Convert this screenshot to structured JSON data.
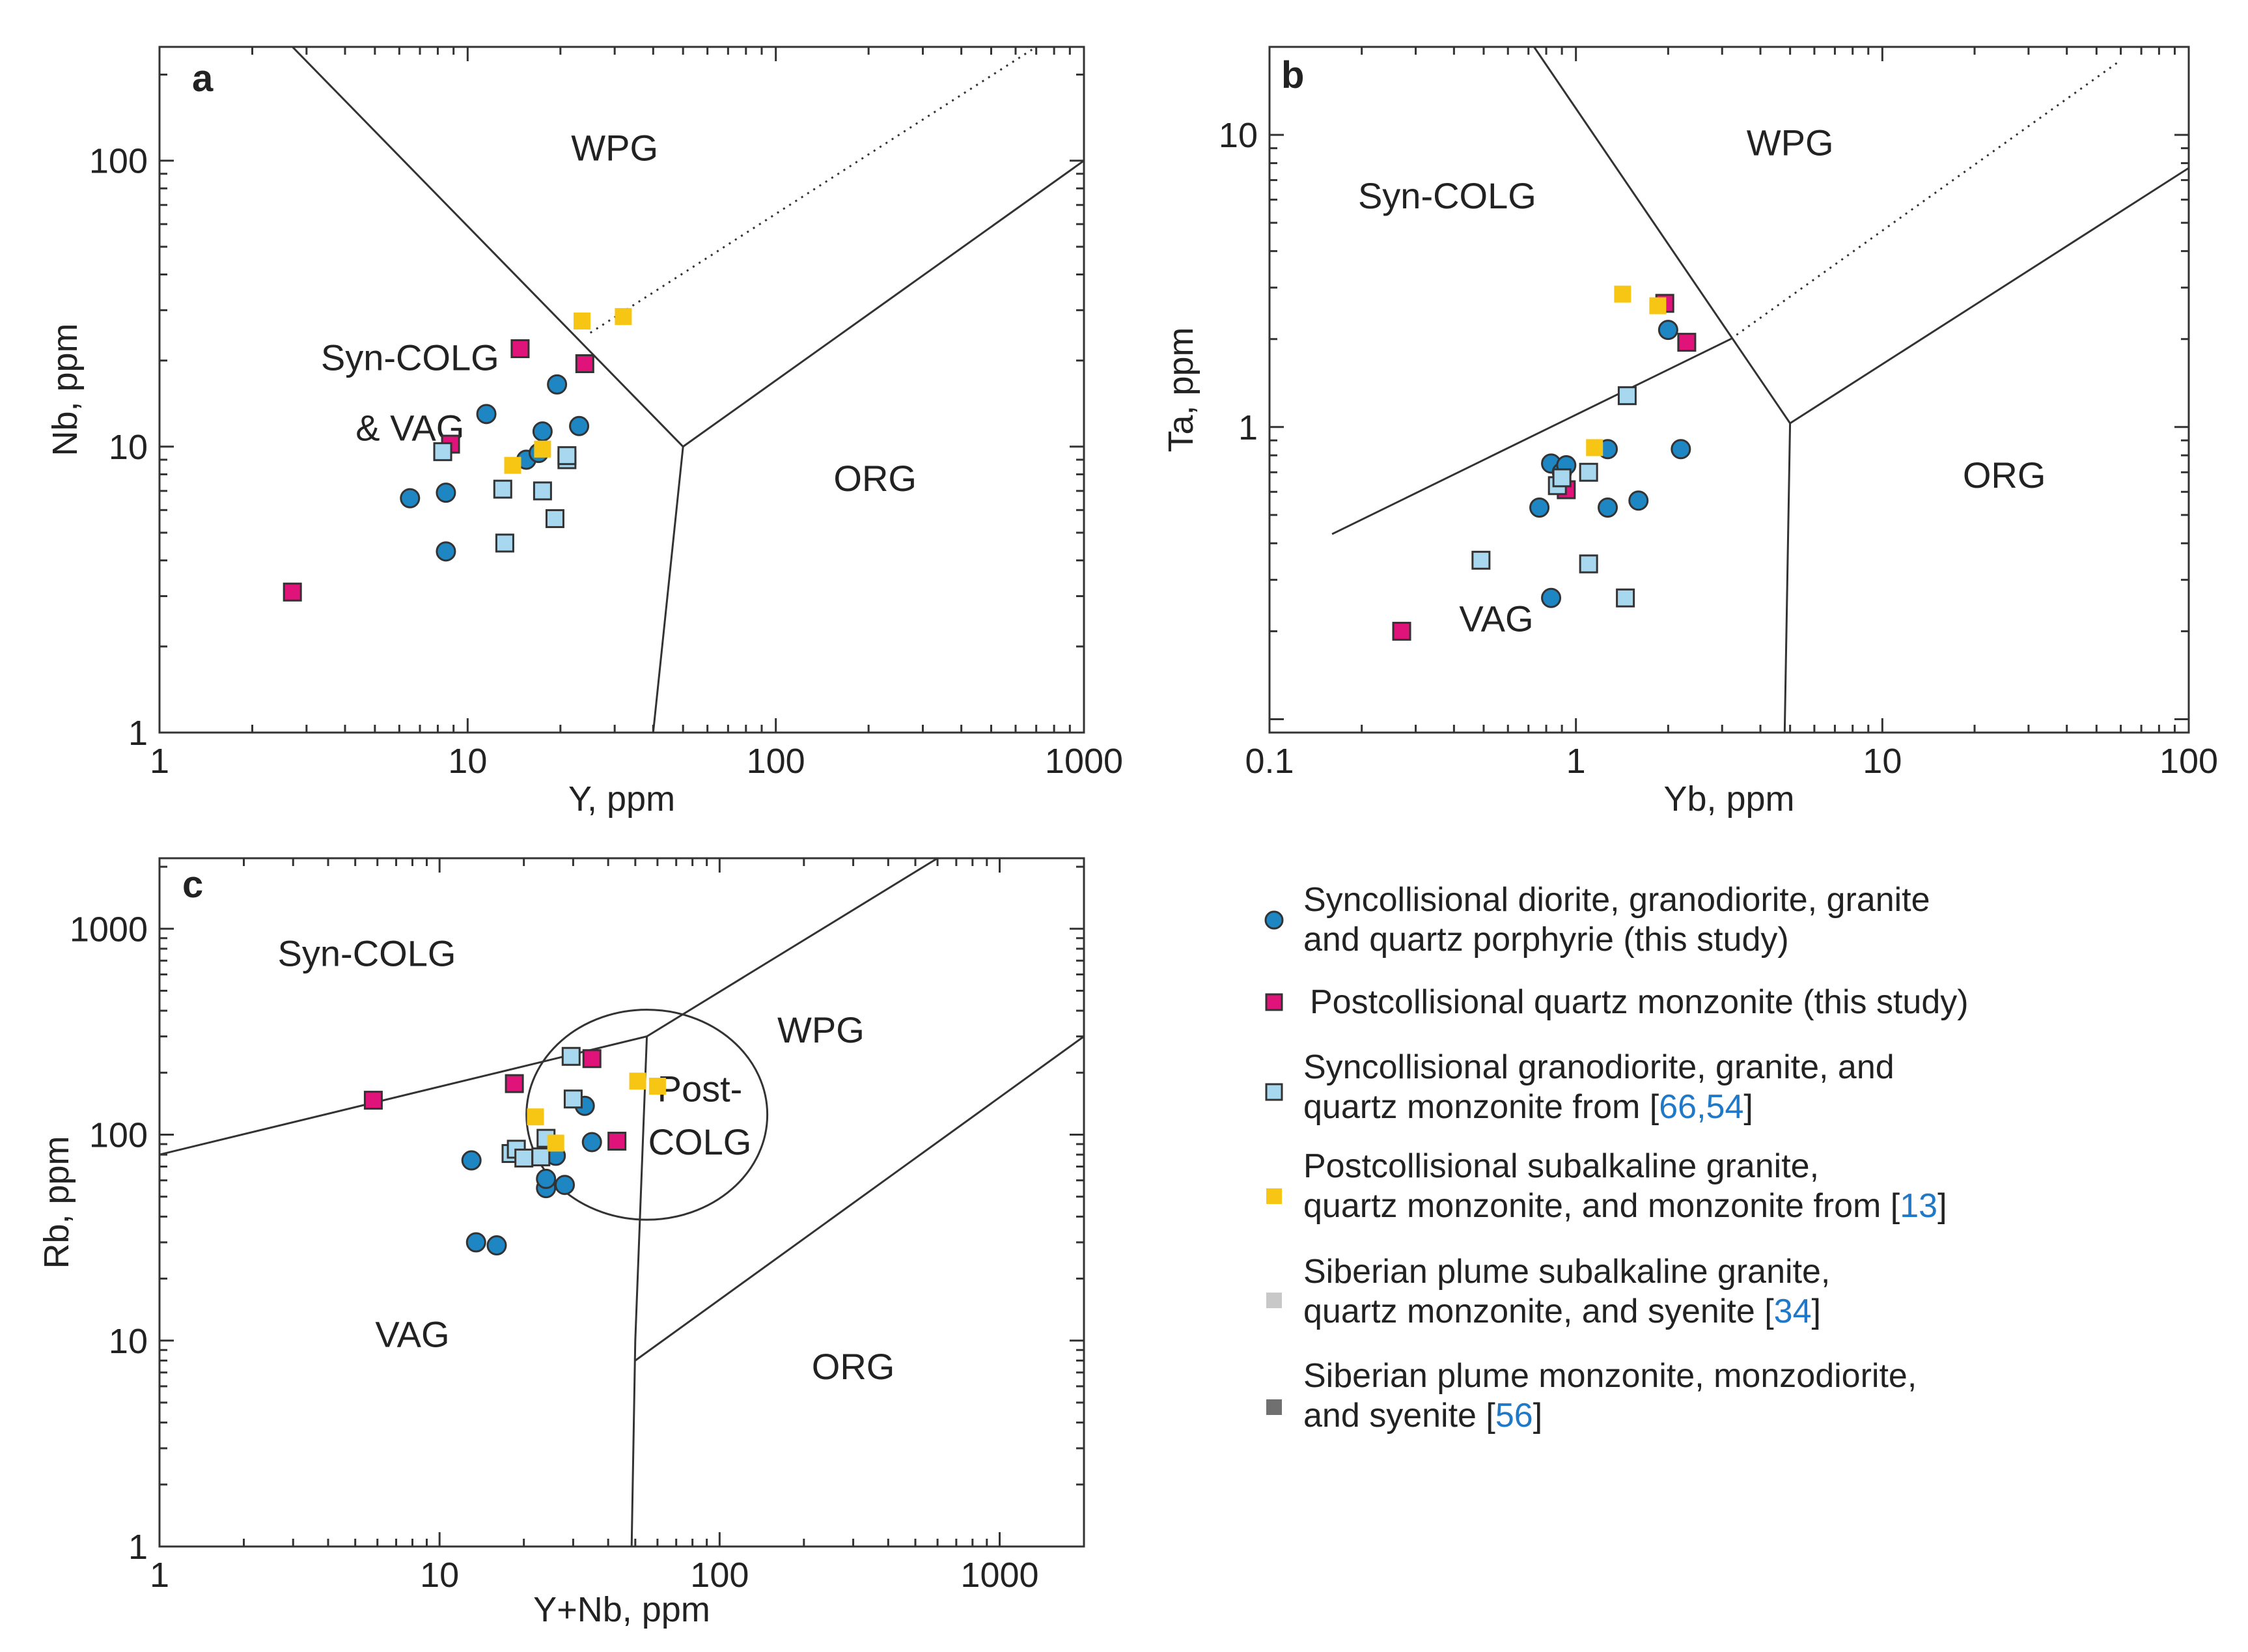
{
  "colors": {
    "this_syn": "#1f86c4",
    "this_post": "#e0137a",
    "syn_lit": "#a8d8ef",
    "post_lit": "#f7c514",
    "plume1": "#c8c8c8",
    "plume2": "#707070",
    "ref": "#1f78c8"
  },
  "legend": [
    {
      "series": "this_syn",
      "marker": "circle",
      "line1": "Syncollisional diorite, granodiorite, granite",
      "line2": "and quartz porphyrie (this study)"
    },
    {
      "series": "this_post",
      "marker": "square",
      "line1": "Postcollisional quartz monzonite (this study)",
      "line2": ""
    },
    {
      "series": "syn_lit",
      "marker": "square",
      "line1": "Syncollisional granodiorite, granite, and",
      "line2": "quartz monzonite from [",
      "refs": "66,54",
      "close": "]"
    },
    {
      "series": "post_lit",
      "marker": "square",
      "line1": "Postcollisional subalkaline granite,",
      "line2": "quartz monzonite, and monzonite from [",
      "refs": "13",
      "close": "]"
    },
    {
      "series": "plume1",
      "marker": "square",
      "line1": "Siberian plume subalkaline granite,",
      "line2": "quartz monzonite, and syenite [",
      "refs": "34",
      "close": "]"
    },
    {
      "series": "plume2",
      "marker": "square",
      "line1": "Siberian plume monzonite, monzodiorite,",
      "line2": "and syenite [",
      "refs": "56",
      "close": "]"
    }
  ],
  "chart_data": [
    {
      "type": "scatter",
      "panel": "a",
      "xlabel": "Y, ppm",
      "ylabel": "Nb, ppm",
      "xscale": "log",
      "yscale": "log",
      "xlim": [
        1,
        1000
      ],
      "ylim": [
        1,
        250
      ],
      "xticks": [
        1,
        10,
        100,
        1000
      ],
      "xtick_labels": [
        "1",
        "10",
        "100",
        "1000"
      ],
      "yticks": [
        1,
        10,
        100
      ],
      "ytick_labels": [
        "1",
        "10",
        "100"
      ],
      "regions": [
        {
          "label": "WPG",
          "x": 30,
          "y": 100
        },
        {
          "label": "Syn-COLG",
          "x": 6.5,
          "y": 18.5
        },
        {
          "label": "& VAG",
          "x": 6.5,
          "y": 10.5
        },
        {
          "label": "ORG",
          "x": 210,
          "y": 7
        }
      ],
      "boundaries": [
        {
          "style": "solid",
          "points": [
            [
              2.7,
              250
            ],
            [
              50,
              10
            ],
            [
              40,
              1
            ]
          ]
        },
        {
          "style": "solid",
          "points": [
            [
              50,
              10
            ],
            [
              1000,
              100
            ]
          ]
        },
        {
          "style": "dotted",
          "points": [
            [
              25,
              25
            ],
            [
              700,
              250
            ]
          ]
        }
      ],
      "series": [
        {
          "name": "this_syn",
          "marker": "circle",
          "points": [
            [
              6.5,
              6.6
            ],
            [
              8.5,
              6.9
            ],
            [
              8.5,
              4.3
            ],
            [
              11.5,
              13
            ],
            [
              15.5,
              9
            ],
            [
              17,
              9.5
            ],
            [
              17.5,
              11.3
            ],
            [
              19.5,
              16.5
            ],
            [
              23,
              11.8
            ]
          ]
        },
        {
          "name": "this_post",
          "marker": "square",
          "points": [
            [
              2.7,
              3.1
            ],
            [
              8.8,
              10.2
            ],
            [
              14.8,
              22
            ],
            [
              24,
              19.5
            ]
          ]
        },
        {
          "name": "syn_lit",
          "marker": "square",
          "points": [
            [
              8.3,
              9.6
            ],
            [
              13,
              7.1
            ],
            [
              13.2,
              4.6
            ],
            [
              17.5,
              7
            ],
            [
              19.2,
              5.6
            ],
            [
              21,
              9
            ],
            [
              21,
              9.3
            ]
          ]
        },
        {
          "name": "post_lit",
          "marker": "square",
          "points": [
            [
              14,
              8.6
            ],
            [
              17.5,
              9.8
            ],
            [
              23.5,
              27.5
            ],
            [
              32,
              28.5
            ]
          ]
        }
      ]
    },
    {
      "type": "scatter",
      "panel": "b",
      "xlabel": "Yb, ppm",
      "ylabel": "Ta, ppm",
      "xscale": "log",
      "yscale": "log",
      "xlim": [
        0.1,
        100
      ],
      "ylim": [
        0.09,
        20
      ],
      "xticks": [
        0.1,
        1,
        10,
        100
      ],
      "xtick_labels": [
        "0.1",
        "1",
        "10",
        "100"
      ],
      "yticks": [
        1,
        10
      ],
      "ytick_labels": [
        "1",
        "10"
      ],
      "regions": [
        {
          "label": "WPG",
          "x": 5,
          "y": 8.5
        },
        {
          "label": "Syn-COLG",
          "x": 0.38,
          "y": 5.6
        },
        {
          "label": "VAG",
          "x": 0.55,
          "y": 0.2
        },
        {
          "label": "ORG",
          "x": 25,
          "y": 0.62
        }
      ],
      "boundaries": [
        {
          "style": "solid",
          "points": [
            [
              0.16,
              0.43
            ],
            [
              3.2,
              2
            ]
          ]
        },
        {
          "style": "solid",
          "points": [
            [
              0.73,
              20
            ],
            [
              5,
              1.03
            ],
            [
              4.8,
              0.09
            ]
          ]
        },
        {
          "style": "solid",
          "points": [
            [
              5,
              1.03
            ],
            [
              100,
              7.7
            ]
          ]
        },
        {
          "style": "dotted",
          "points": [
            [
              3.2,
              2
            ],
            [
              60,
              18
            ]
          ]
        }
      ],
      "series": [
        {
          "name": "this_syn",
          "marker": "circle",
          "points": [
            [
              0.76,
              0.53
            ],
            [
              0.83,
              0.75
            ],
            [
              0.9,
              0.7
            ],
            [
              0.93,
              0.74
            ],
            [
              1.27,
              0.84
            ],
            [
              1.27,
              0.53
            ],
            [
              1.6,
              0.56
            ],
            [
              2,
              2.15
            ],
            [
              2.2,
              0.84
            ],
            [
              0.83,
              0.26
            ]
          ]
        },
        {
          "name": "this_post",
          "marker": "square",
          "points": [
            [
              0.27,
              0.2
            ],
            [
              0.93,
              0.61
            ],
            [
              1.95,
              2.65
            ],
            [
              2.3,
              1.95
            ]
          ]
        },
        {
          "name": "syn_lit",
          "marker": "square",
          "points": [
            [
              0.49,
              0.35
            ],
            [
              0.87,
              0.63
            ],
            [
              0.9,
              0.67
            ],
            [
              1.1,
              0.7
            ],
            [
              1.1,
              0.34
            ],
            [
              1.47,
              1.28
            ],
            [
              1.45,
              0.26
            ]
          ]
        },
        {
          "name": "post_lit",
          "marker": "square",
          "points": [
            [
              1.15,
              0.85
            ],
            [
              1.42,
              2.85
            ],
            [
              1.85,
              2.6
            ]
          ]
        }
      ]
    },
    {
      "type": "scatter",
      "panel": "c",
      "xlabel": "Y+Nb, ppm",
      "ylabel": "Rb, ppm",
      "xscale": "log",
      "yscale": "log",
      "xlim": [
        1,
        2000
      ],
      "ylim": [
        1,
        2200
      ],
      "xticks": [
        1,
        10,
        100,
        1000
      ],
      "xtick_labels": [
        "1",
        "10",
        "100",
        "1000"
      ],
      "yticks": [
        1,
        10,
        100,
        1000
      ],
      "ytick_labels": [
        "1",
        "10",
        "100",
        "1000"
      ],
      "regions": [
        {
          "label": "Syn-COLG",
          "x": 5.5,
          "y": 660
        },
        {
          "label": "WPG",
          "x": 230,
          "y": 280
        },
        {
          "label": "Post-",
          "x": 85,
          "y": 145
        },
        {
          "label": "COLG",
          "x": 85,
          "y": 80
        },
        {
          "label": "VAG",
          "x": 8,
          "y": 9.3
        },
        {
          "label": "ORG",
          "x": 300,
          "y": 6.5
        }
      ],
      "boundaries": [
        {
          "style": "solid",
          "points": [
            [
              1,
              80
            ],
            [
              55,
              300
            ],
            [
              600,
              2200
            ]
          ]
        },
        {
          "style": "solid",
          "points": [
            [
              55,
              300
            ],
            [
              50,
              10
            ],
            [
              48.5,
              1
            ]
          ]
        },
        {
          "style": "solid",
          "points": [
            [
              50,
              8
            ],
            [
              2000,
              300
            ]
          ]
        }
      ],
      "ellipse": {
        "style": "solid",
        "center": [
          55,
          125
        ],
        "semi_axis_log_x": 0.43,
        "semi_axis_log_y": 0.51
      },
      "series": [
        {
          "name": "this_syn",
          "marker": "circle",
          "points": [
            [
              13,
              75
            ],
            [
              24,
              55
            ],
            [
              24,
              61
            ],
            [
              26,
              79
            ],
            [
              28,
              57
            ],
            [
              33,
              138
            ],
            [
              35,
              92
            ],
            [
              13.5,
              30
            ],
            [
              16,
              29
            ]
          ]
        },
        {
          "name": "this_post",
          "marker": "square",
          "points": [
            [
              5.8,
              147
            ],
            [
              18.5,
              177
            ],
            [
              35,
              234
            ],
            [
              43,
              93
            ]
          ]
        },
        {
          "name": "syn_lit",
          "marker": "square",
          "points": [
            [
              18,
              81
            ],
            [
              18.8,
              85
            ],
            [
              20,
              77
            ],
            [
              23,
              78
            ],
            [
              24,
              96
            ],
            [
              29.5,
              240
            ],
            [
              30,
              149
            ]
          ]
        },
        {
          "name": "post_lit",
          "marker": "square",
          "points": [
            [
              22,
              122
            ],
            [
              26,
              91
            ],
            [
              51,
              182
            ],
            [
              60,
              172
            ]
          ]
        }
      ]
    }
  ]
}
